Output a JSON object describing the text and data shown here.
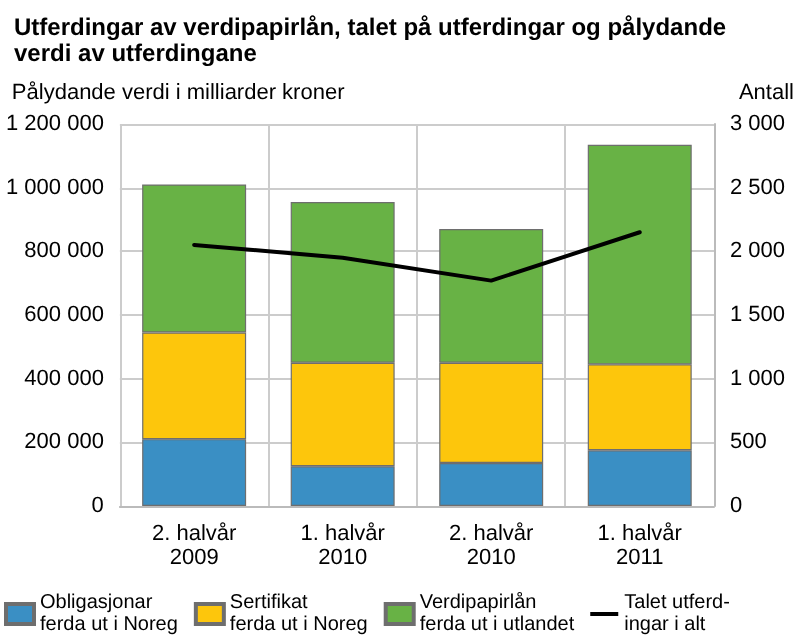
{
  "chart_data": {
    "type": "bar",
    "stacked": true,
    "title": "Utferdingar av verdipapirlån, talet på utferdingar og pålydande verdi av utferdingane",
    "ylabel": "Pålydande verdi i milliarder kroner",
    "y2label": "Antall",
    "categories": [
      "2. halvår\n2009",
      "1. halvår\n2010",
      "2. halvår\n2010",
      "1. halvår\n2011"
    ],
    "series": [
      {
        "name": "Obligasjonar\nferda ut i Noreg",
        "color": "#3a8fc4",
        "values": [
          210000,
          125000,
          135000,
          175000
        ]
      },
      {
        "name": "Sertifikat\nferda ut i Noreg",
        "color": "#fdc60c",
        "values": [
          335000,
          325000,
          315000,
          270000
        ]
      },
      {
        "name": "Verdipapirlån\nferda ut i utlandet",
        "color": "#68b245",
        "values": [
          465000,
          505000,
          420000,
          690000
        ]
      },
      {
        "name": "Talet utferd-\ningar i alt",
        "type": "line",
        "axis": "y2",
        "color": "#000000",
        "values": [
          2050,
          1950,
          1770,
          2150
        ]
      }
    ],
    "ylim": [
      0,
      1200000
    ],
    "yticks": [
      0,
      {
        "value": 200000,
        "label": "200 000"
      },
      {
        "value": 400000,
        "label": "400 000"
      },
      {
        "value": 600000,
        "label": "600 000"
      },
      {
        "value": 800000,
        "label": "800 000"
      },
      {
        "value": 1000000,
        "label": "1 000 000"
      },
      {
        "value": 1200000,
        "label": "1 200 000"
      }
    ],
    "y2lim": [
      0,
      3000
    ],
    "y2ticks": [
      0,
      500,
      {
        "value": 1000,
        "label": "1 000"
      },
      {
        "value": 1500,
        "label": "1 500"
      },
      {
        "value": 2000,
        "label": "2 000"
      },
      {
        "value": 2500,
        "label": "2 500"
      },
      {
        "value": 3000,
        "label": "3 000"
      }
    ],
    "grid": true,
    "legend": "bottom",
    "marker": "none",
    "line_style": "solid"
  }
}
